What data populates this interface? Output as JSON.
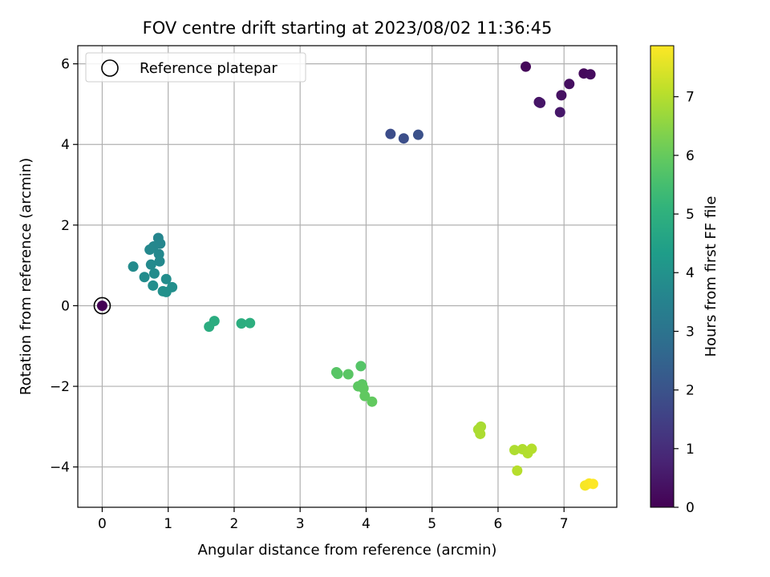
{
  "chart_data": {
    "type": "scatter",
    "title": "FOV centre drift starting at 2023/08/02 11:36:45",
    "xlabel": "Angular distance from reference (arcmin)",
    "ylabel": "Rotation from reference (arcmin)",
    "xlim": [
      -0.37,
      7.8
    ],
    "ylim": [
      -5.0,
      6.45
    ],
    "xticks": [
      0,
      1,
      2,
      3,
      4,
      5,
      6,
      7
    ],
    "yticks": [
      -4,
      -2,
      0,
      2,
      4,
      6
    ],
    "xtick_labels": [
      "0",
      "1",
      "2",
      "3",
      "4",
      "5",
      "6",
      "7"
    ],
    "ytick_labels": [
      "−4",
      "−2",
      "0",
      "2",
      "4",
      "6"
    ],
    "grid": true,
    "legend": {
      "position": "top-left",
      "entries": [
        "Reference platepar"
      ]
    },
    "reference_point": {
      "x": 0,
      "y": 0
    },
    "colormap": "viridis",
    "colorbar": {
      "label": "Hours from first FF file",
      "range": [
        0,
        7.87
      ],
      "ticks": [
        0,
        1,
        2,
        3,
        4,
        5,
        6,
        7
      ],
      "tick_labels": [
        "0",
        "1",
        "2",
        "3",
        "4",
        "5",
        "6",
        "7"
      ]
    },
    "points": [
      {
        "x": 0.0,
        "y": 0.0,
        "hours": 0.0
      },
      {
        "x": 6.42,
        "y": 5.93,
        "hours": 0.15
      },
      {
        "x": 7.3,
        "y": 5.76,
        "hours": 0.2
      },
      {
        "x": 7.4,
        "y": 5.74,
        "hours": 0.25
      },
      {
        "x": 7.08,
        "y": 5.5,
        "hours": 0.3
      },
      {
        "x": 6.96,
        "y": 5.22,
        "hours": 0.35
      },
      {
        "x": 6.62,
        "y": 5.05,
        "hours": 0.4
      },
      {
        "x": 6.64,
        "y": 5.03,
        "hours": 0.45
      },
      {
        "x": 6.94,
        "y": 4.8,
        "hours": 0.5
      },
      {
        "x": 4.37,
        "y": 4.26,
        "hours": 1.85
      },
      {
        "x": 4.57,
        "y": 4.15,
        "hours": 1.9
      },
      {
        "x": 4.79,
        "y": 4.24,
        "hours": 1.95
      },
      {
        "x": 0.85,
        "y": 1.68,
        "hours": 3.6
      },
      {
        "x": 0.88,
        "y": 1.54,
        "hours": 3.62
      },
      {
        "x": 0.78,
        "y": 1.47,
        "hours": 3.65
      },
      {
        "x": 0.72,
        "y": 1.39,
        "hours": 3.67
      },
      {
        "x": 0.86,
        "y": 1.28,
        "hours": 3.7
      },
      {
        "x": 0.87,
        "y": 1.1,
        "hours": 3.72
      },
      {
        "x": 0.74,
        "y": 1.02,
        "hours": 3.75
      },
      {
        "x": 0.47,
        "y": 0.97,
        "hours": 3.77
      },
      {
        "x": 0.79,
        "y": 0.8,
        "hours": 3.8
      },
      {
        "x": 0.64,
        "y": 0.71,
        "hours": 3.82
      },
      {
        "x": 0.97,
        "y": 0.66,
        "hours": 3.85
      },
      {
        "x": 0.77,
        "y": 0.5,
        "hours": 3.87
      },
      {
        "x": 1.06,
        "y": 0.46,
        "hours": 3.9
      },
      {
        "x": 0.92,
        "y": 0.36,
        "hours": 3.92
      },
      {
        "x": 0.97,
        "y": 0.34,
        "hours": 3.95
      },
      {
        "x": 1.7,
        "y": -0.38,
        "hours": 4.85
      },
      {
        "x": 1.62,
        "y": -0.52,
        "hours": 4.87
      },
      {
        "x": 2.11,
        "y": -0.44,
        "hours": 4.9
      },
      {
        "x": 2.24,
        "y": -0.43,
        "hours": 4.92
      },
      {
        "x": 3.92,
        "y": -1.5,
        "hours": 5.75
      },
      {
        "x": 3.55,
        "y": -1.65,
        "hours": 5.77
      },
      {
        "x": 3.57,
        "y": -1.69,
        "hours": 5.8
      },
      {
        "x": 3.73,
        "y": -1.7,
        "hours": 5.82
      },
      {
        "x": 3.94,
        "y": -1.95,
        "hours": 5.85
      },
      {
        "x": 3.88,
        "y": -2.0,
        "hours": 5.87
      },
      {
        "x": 3.96,
        "y": -2.05,
        "hours": 5.9
      },
      {
        "x": 3.98,
        "y": -2.24,
        "hours": 5.92
      },
      {
        "x": 4.09,
        "y": -2.38,
        "hours": 5.95
      },
      {
        "x": 5.74,
        "y": -3.0,
        "hours": 6.85
      },
      {
        "x": 5.7,
        "y": -3.07,
        "hours": 6.87
      },
      {
        "x": 5.73,
        "y": -3.18,
        "hours": 6.9
      },
      {
        "x": 6.25,
        "y": -3.58,
        "hours": 6.92
      },
      {
        "x": 6.37,
        "y": -3.56,
        "hours": 6.95
      },
      {
        "x": 6.45,
        "y": -3.66,
        "hours": 6.97
      },
      {
        "x": 6.51,
        "y": -3.55,
        "hours": 7.0
      },
      {
        "x": 6.29,
        "y": -4.09,
        "hours": 7.02
      },
      {
        "x": 7.32,
        "y": -4.46,
        "hours": 7.78
      },
      {
        "x": 7.38,
        "y": -4.41,
        "hours": 7.82
      },
      {
        "x": 7.44,
        "y": -4.42,
        "hours": 7.86
      }
    ]
  }
}
